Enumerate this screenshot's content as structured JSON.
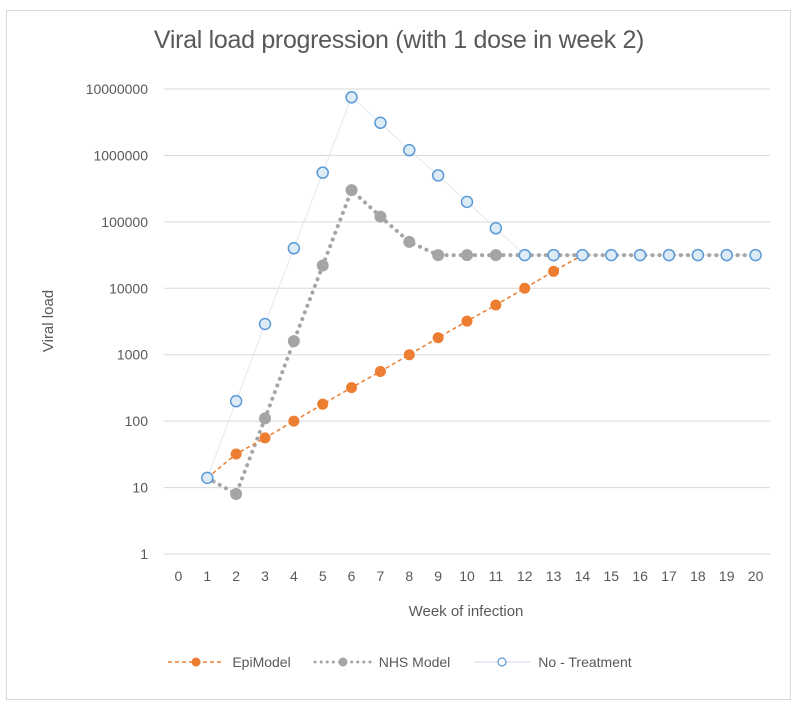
{
  "chart_data": {
    "type": "line",
    "title": "Viral load progression (with 1 dose in week 2)",
    "xlabel": "Week of infection",
    "ylabel": "Viral load",
    "yscale": "log",
    "ylim": [
      1,
      10000000
    ],
    "xlim": [
      0,
      20
    ],
    "y_ticks": [
      "1",
      "10",
      "100",
      "1000",
      "10000",
      "100000",
      "1000000",
      "10000000"
    ],
    "x_ticks": [
      "0",
      "1",
      "2",
      "3",
      "4",
      "5",
      "6",
      "7",
      "8",
      "9",
      "10",
      "11",
      "12",
      "13",
      "14",
      "15",
      "16",
      "17",
      "18",
      "19",
      "20"
    ],
    "grid": true,
    "legend_position": "bottom",
    "x": [
      1,
      2,
      3,
      4,
      5,
      6,
      7,
      8,
      9,
      10,
      11,
      12,
      13,
      14,
      15,
      16,
      17,
      18,
      19,
      20
    ],
    "series": [
      {
        "name": "EpiModel",
        "color": "#ed7d31",
        "style": "dashed-filled-marker",
        "values": [
          14,
          32,
          56,
          100,
          180,
          320,
          560,
          1000,
          1800,
          3200,
          5600,
          10000,
          18000,
          31600,
          null,
          null,
          null,
          null,
          null,
          null
        ]
      },
      {
        "name": "NHS Model",
        "color": "#a5a5a5",
        "style": "dotted-filled-marker",
        "values": [
          14,
          8,
          110,
          1600,
          22000,
          300000,
          120000,
          50000,
          31600,
          31600,
          31600,
          31600,
          31600,
          31600,
          31600,
          31600,
          31600,
          31600,
          31600,
          31600
        ]
      },
      {
        "name": "No - Treatment",
        "color": "#5b9bd5",
        "style": "thin-line-open-marker",
        "values": [
          14,
          200,
          2900,
          40000,
          550000,
          7500000,
          3100000,
          1200000,
          500000,
          200000,
          80000,
          31600,
          31600,
          31600,
          31600,
          31600,
          31600,
          31600,
          31600,
          31600
        ]
      }
    ]
  }
}
